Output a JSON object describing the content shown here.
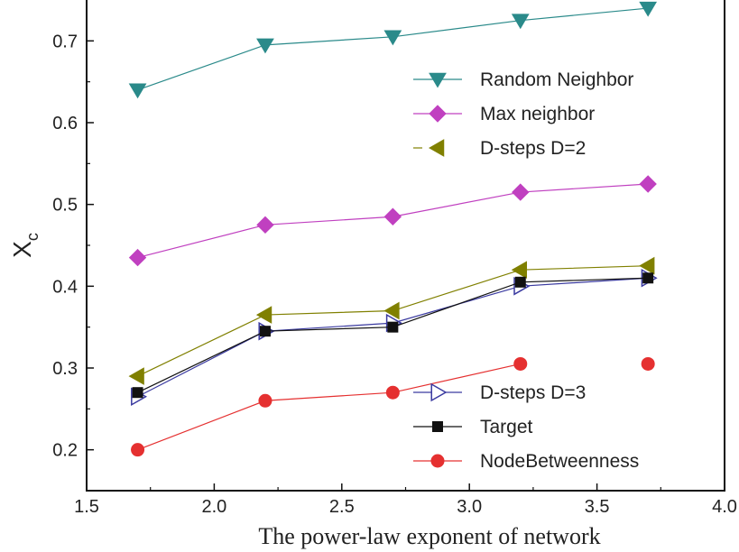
{
  "chart_data": {
    "type": "line",
    "title": "",
    "xlabel": "The power-law exponent of network",
    "ylabel": "X",
    "ylabel_subscript": "c",
    "xlim": [
      1.5,
      4.0
    ],
    "ylim": [
      0.15,
      0.75
    ],
    "x_ticks": [
      1.5,
      2.0,
      2.5,
      3.0,
      3.5,
      4.0
    ],
    "x_tick_labels": [
      "1.5",
      "2.0",
      "2.5",
      "3.0",
      "3.5",
      "4.0"
    ],
    "y_ticks": [
      0.2,
      0.3,
      0.4,
      0.5,
      0.6,
      0.7
    ],
    "y_tick_labels": [
      "0.2",
      "0.3",
      "0.4",
      "0.5",
      "0.6",
      "0.7"
    ],
    "grid": false,
    "x": [
      1.7,
      2.2,
      2.7,
      3.2,
      3.7
    ],
    "series": [
      {
        "name": "Random Neighbor",
        "values": [
          0.64,
          0.695,
          0.705,
          0.725,
          0.74
        ],
        "color": "#2a8a8a",
        "marker": "triangle-down",
        "legend_group": "top"
      },
      {
        "name": "Max neighbor",
        "values": [
          0.435,
          0.475,
          0.485,
          0.515,
          0.525
        ],
        "color": "#c040c0",
        "marker": "diamond",
        "legend_group": "top"
      },
      {
        "name": "D-steps D=2",
        "values": [
          0.29,
          0.365,
          0.37,
          0.42,
          0.425
        ],
        "color": "#808000",
        "marker": "triangle-left",
        "legend_group": "top"
      },
      {
        "name": "D-steps D=3",
        "values": [
          0.265,
          0.345,
          0.355,
          0.4,
          0.41
        ],
        "color": "#3a3aa0",
        "marker": "triangle-right-open",
        "legend_group": "bottom"
      },
      {
        "name": "Target",
        "values": [
          0.27,
          0.345,
          0.35,
          0.405,
          0.41
        ],
        "color": "#111111",
        "marker": "square",
        "legend_group": "bottom"
      },
      {
        "name": "NodeBetweenness",
        "values": [
          0.2,
          0.26,
          0.27,
          0.305,
          0.305
        ],
        "color": "#e53030",
        "marker": "circle",
        "legend_group": "bottom",
        "connect_last": false
      }
    ]
  }
}
